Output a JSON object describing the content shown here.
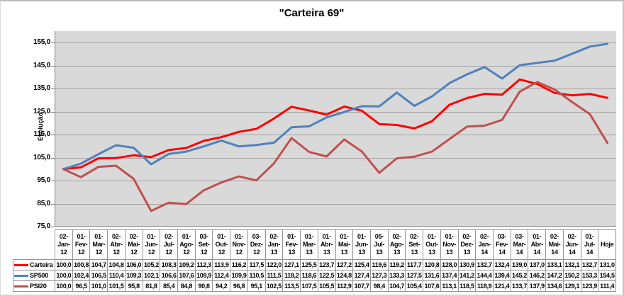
{
  "chart_data": {
    "type": "line",
    "title": "\"Carteira 69\"",
    "ylabel": "Evolução",
    "ylim": [
      75,
      160
    ],
    "yticks": [
      155,
      145,
      135,
      125,
      115,
      105,
      95,
      85,
      75
    ],
    "grid": true,
    "legend_position": "table-left",
    "plot_bg": "#d9d9d9",
    "gridline_color": "#a3a3a3",
    "axis_color": "#7f7f7f",
    "decimal_separator": ",",
    "categories": [
      "02-Jan-12",
      "01-Fev-12",
      "01-Mar-12",
      "02-Abr-12",
      "02-Mai-12",
      "01-Jun-12",
      "02-Jul-12",
      "01-Ago-12",
      "03-Set-12",
      "01-Out-12",
      "01-Nov-12",
      "03-Dez-12",
      "02-Jan-13",
      "01-Fev-13",
      "01-Mar-13",
      "01-Abr-13",
      "01-Mai-13",
      "01-Jun-13",
      "05-Jul-13",
      "02-Ago-13",
      "02-Set-13",
      "01-Out-13",
      "01-Nov-13",
      "02-Dez-13",
      "02-Jan-14",
      "03-Fev-14",
      "03-Mar-14",
      "01-Abr-14",
      "02-Mai-14",
      "02-Jun-14",
      "01-Jul-14",
      "Hoje"
    ],
    "series": [
      {
        "name": "Carteira",
        "color": "#ff0000",
        "values": [
          100.0,
          100.8,
          104.7,
          104.8,
          106.0,
          105.2,
          108.3,
          109.2,
          112.3,
          113.9,
          116.2,
          117.5,
          122.0,
          127.1,
          125.5,
          123.7,
          127.2,
          125.4,
          119.6,
          119.2,
          117.7,
          120.8,
          128.0,
          130.9,
          132.7,
          132.4,
          139.0,
          137.0,
          133.1,
          132.1,
          132.7,
          131.0
        ]
      },
      {
        "name": "SP500",
        "color": "#4f81bd",
        "values": [
          100.0,
          102.4,
          106.5,
          110.4,
          109.3,
          102.1,
          106.6,
          107.6,
          109.9,
          112.4,
          109.9,
          110.5,
          111.5,
          118.2,
          118.6,
          122.5,
          124.8,
          127.4,
          127.3,
          133.3,
          127.5,
          131.6,
          137.4,
          141.2,
          144.4,
          139.4,
          145.2,
          146.2,
          147.2,
          150.2,
          153.3,
          154.5
        ]
      },
      {
        "name": "PSI20",
        "color": "#c0504d",
        "values": [
          100.0,
          96.5,
          101.0,
          101.5,
          95.8,
          81.8,
          85.4,
          84.8,
          90.8,
          94.2,
          96.8,
          95.1,
          102.5,
          113.5,
          107.5,
          105.5,
          112.9,
          107.7,
          98.4,
          104.7,
          105.4,
          107.6,
          113.1,
          118.5,
          118.9,
          121.4,
          133.7,
          137.9,
          134.6,
          129.1,
          123.9,
          111.4
        ]
      }
    ]
  }
}
